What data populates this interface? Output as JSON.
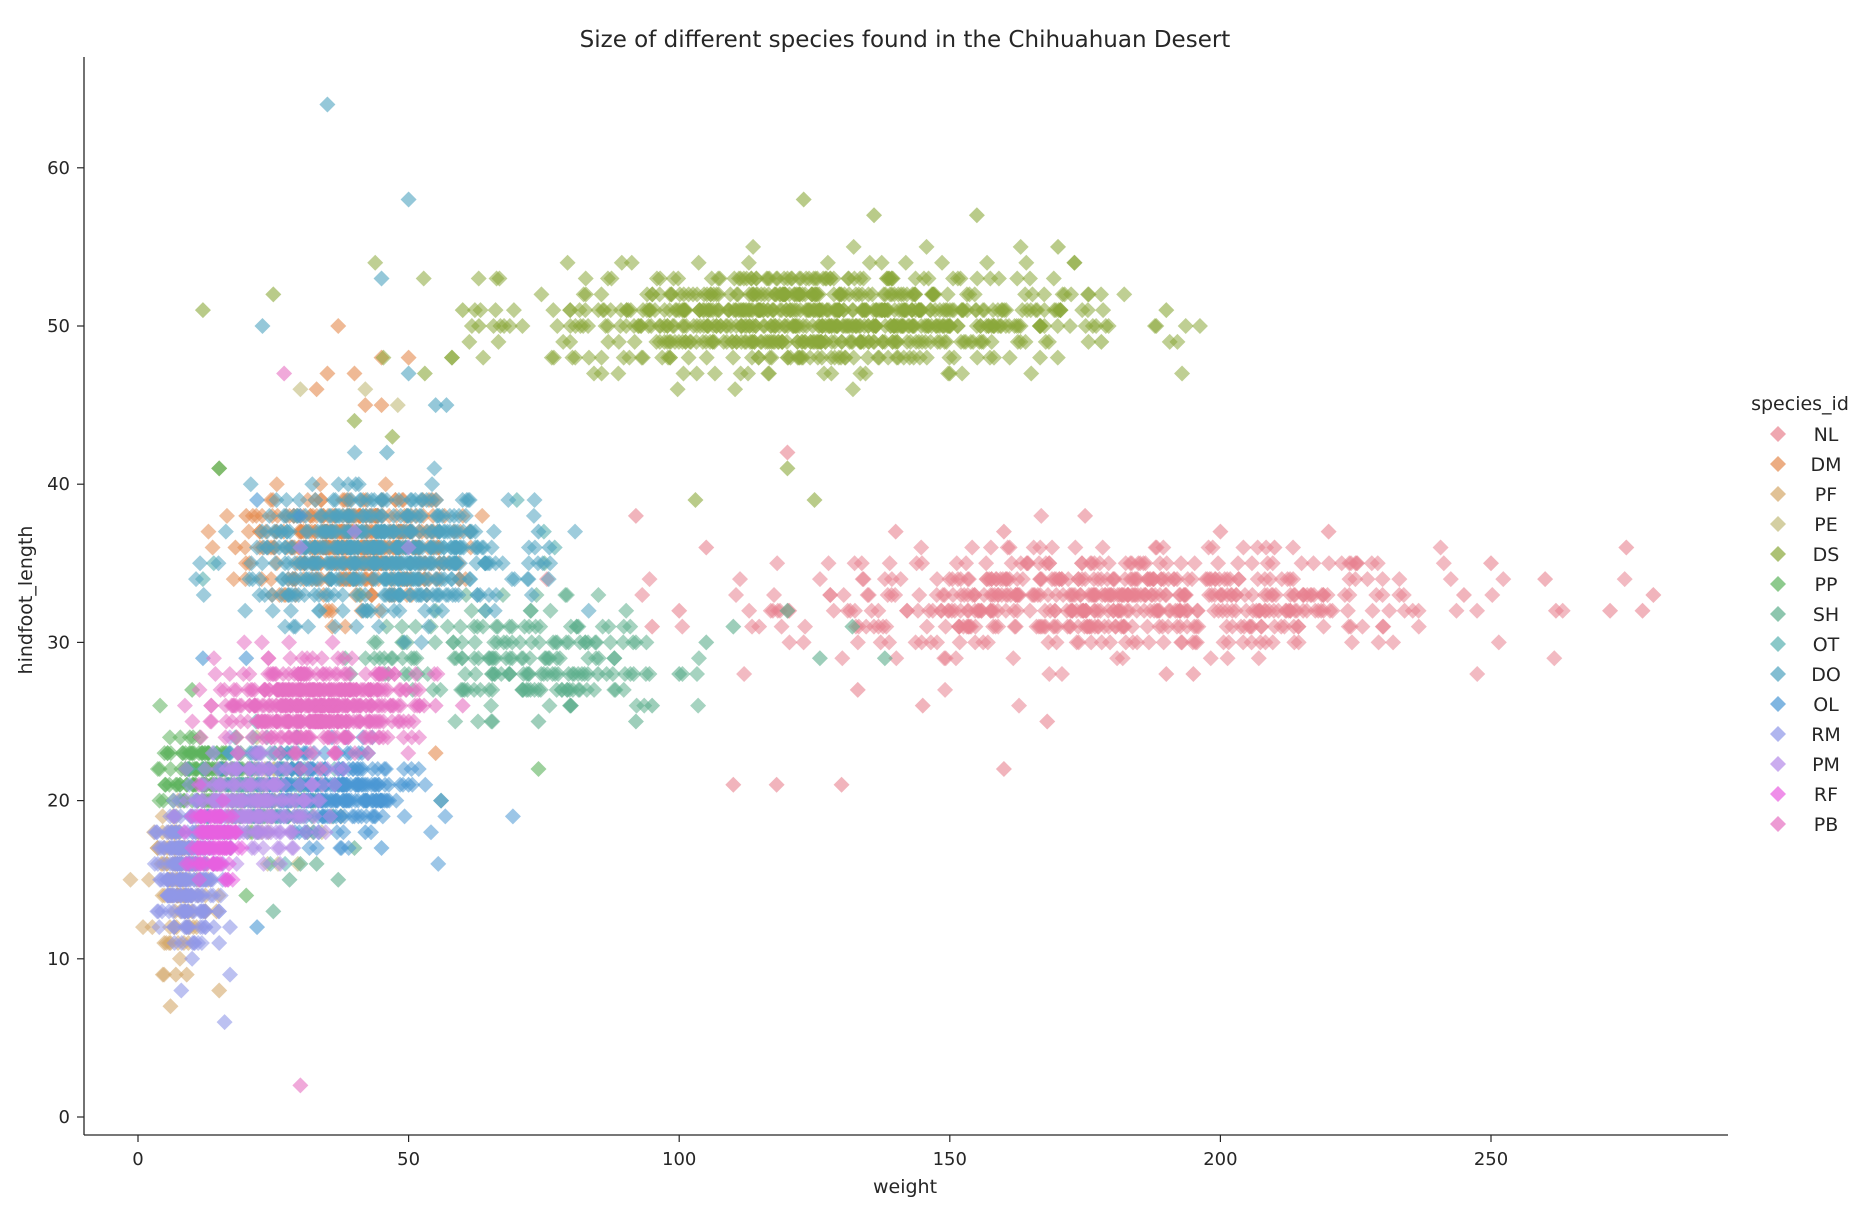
{
  "chart_data": {
    "type": "scatter",
    "title": "Size of different species found in the Chihuahuan Desert",
    "xlabel": "weight",
    "ylabel": "hindfoot_length",
    "xlim": [
      -10,
      293
    ],
    "ylim": [
      -1,
      67
    ],
    "x_ticks": [
      0,
      50,
      100,
      150,
      200,
      250
    ],
    "y_ticks": [
      0,
      10,
      20,
      30,
      40,
      50,
      60
    ],
    "marker": "diamond",
    "grid": false,
    "legend": {
      "title": "species_id",
      "placement": "right"
    },
    "series": [
      {
        "name": "NL",
        "color": "#e8828f",
        "clusters": [
          {
            "cx": 180,
            "cy": 32.5,
            "sx": 30,
            "sy": 1.6,
            "n": 600
          }
        ],
        "points": [
          [
            92,
            38
          ],
          [
            175,
            38
          ],
          [
            200,
            37
          ],
          [
            140,
            37
          ],
          [
            160,
            37
          ],
          [
            110,
            21
          ],
          [
            118,
            21
          ],
          [
            130,
            21
          ],
          [
            160,
            22
          ],
          [
            168,
            25
          ],
          [
            133,
            27
          ],
          [
            145,
            26
          ],
          [
            275,
            36
          ],
          [
            280,
            33
          ],
          [
            272,
            32
          ],
          [
            260,
            34
          ],
          [
            250,
            35
          ],
          [
            105,
            36
          ],
          [
            120,
            42
          ],
          [
            95,
            31
          ],
          [
            100,
            32
          ],
          [
            220,
            37
          ],
          [
            210,
            36
          ],
          [
            190,
            28
          ],
          [
            195,
            28
          ],
          [
            230,
            31
          ],
          [
            245,
            33
          ],
          [
            262,
            32
          ],
          [
            278,
            32
          ]
        ]
      },
      {
        "name": "DM",
        "color": "#e48a4e",
        "clusters": [
          {
            "cx": 40,
            "cy": 36,
            "sx": 9,
            "sy": 1.6,
            "n": 450
          }
        ],
        "points": [
          [
            37,
            50
          ],
          [
            35,
            47
          ],
          [
            40,
            47
          ],
          [
            45,
            48
          ],
          [
            50,
            48
          ],
          [
            33,
            46
          ],
          [
            18,
            36
          ],
          [
            20,
            38
          ],
          [
            25,
            36
          ],
          [
            55,
            23
          ],
          [
            45,
            45
          ],
          [
            42,
            45
          ]
        ]
      },
      {
        "name": "PF",
        "color": "#d4a86a",
        "clusters": [
          {
            "cx": 8,
            "cy": 15,
            "sx": 2.5,
            "sy": 2,
            "n": 120
          }
        ],
        "points": [
          [
            6,
            7
          ],
          [
            7,
            9
          ],
          [
            9,
            9
          ],
          [
            15,
            8
          ],
          [
            6,
            11
          ]
        ]
      },
      {
        "name": "PE",
        "color": "#c2ba7a",
        "clusters": [
          {
            "cx": 24,
            "cy": 20,
            "sx": 5,
            "sy": 1.5,
            "n": 100
          }
        ],
        "points": [
          [
            30,
            46
          ],
          [
            42,
            46
          ],
          [
            48,
            45
          ]
        ]
      },
      {
        "name": "DS",
        "color": "#8aa83a",
        "clusters": [
          {
            "cx": 125,
            "cy": 50.5,
            "sx": 24,
            "sy": 1.6,
            "n": 800
          }
        ],
        "points": [
          [
            12,
            51
          ],
          [
            25,
            52
          ],
          [
            155,
            57
          ],
          [
            123,
            58
          ],
          [
            178,
            49
          ],
          [
            190,
            51
          ],
          [
            103,
            39
          ],
          [
            120,
            41
          ],
          [
            125,
            39
          ],
          [
            15,
            41
          ],
          [
            40,
            44
          ],
          [
            47,
            43
          ],
          [
            58,
            48
          ],
          [
            53,
            47
          ],
          [
            60,
            51
          ],
          [
            63,
            50
          ],
          [
            136,
            57
          ],
          [
            170,
            55
          ],
          [
            173,
            54
          ],
          [
            150,
            47
          ]
        ]
      },
      {
        "name": "PP",
        "color": "#5cb35c",
        "clusters": [
          {
            "cx": 12,
            "cy": 21.5,
            "sx": 4,
            "sy": 1.2,
            "n": 160
          }
        ],
        "points": [
          [
            5,
            21
          ],
          [
            10,
            27
          ],
          [
            15,
            41
          ],
          [
            20,
            14
          ],
          [
            74,
            22
          ]
        ]
      },
      {
        "name": "SH",
        "color": "#5cae8c",
        "clusters": [
          {
            "cx": 70,
            "cy": 29,
            "sx": 14,
            "sy": 1.8,
            "n": 200
          }
        ],
        "points": [
          [
            74,
            25
          ],
          [
            80,
            26
          ],
          [
            92,
            25
          ],
          [
            95,
            26
          ],
          [
            100,
            28
          ],
          [
            105,
            30
          ],
          [
            110,
            31
          ],
          [
            120,
            32
          ],
          [
            126,
            29
          ],
          [
            132,
            31
          ],
          [
            138,
            29
          ],
          [
            25,
            13
          ],
          [
            28,
            15
          ],
          [
            30,
            16
          ],
          [
            33,
            16
          ],
          [
            37,
            15
          ],
          [
            40,
            17
          ],
          [
            56,
            20
          ],
          [
            60,
            27
          ],
          [
            65,
            29
          ],
          [
            85,
            28
          ],
          [
            88,
            29
          ]
        ]
      },
      {
        "name": "OT",
        "color": "#58b0b0",
        "clusters": [
          {
            "cx": 24,
            "cy": 21,
            "sx": 5,
            "sy": 1.5,
            "n": 150
          }
        ],
        "points": [
          [
            70,
            39
          ],
          [
            75,
            37
          ],
          [
            77,
            36
          ],
          [
            12,
            34
          ],
          [
            14,
            35
          ]
        ]
      },
      {
        "name": "DO",
        "color": "#4ea3bf",
        "clusters": [
          {
            "cx": 45,
            "cy": 35.5,
            "sx": 12,
            "sy": 1.9,
            "n": 550
          }
        ],
        "points": [
          [
            35,
            64
          ],
          [
            50,
            58
          ],
          [
            45,
            53
          ],
          [
            23,
            50
          ],
          [
            50,
            47
          ],
          [
            46,
            42
          ],
          [
            55,
            45
          ],
          [
            57,
            45
          ],
          [
            76,
            36
          ],
          [
            74,
            37
          ]
        ]
      },
      {
        "name": "OL",
        "color": "#4a97d4",
        "clusters": [
          {
            "cx": 35,
            "cy": 20.5,
            "sx": 8,
            "sy": 1.4,
            "n": 280
          }
        ],
        "points": [
          [
            22,
            39
          ],
          [
            30,
            38
          ],
          [
            22,
            12
          ],
          [
            12,
            29
          ],
          [
            20,
            29
          ],
          [
            56,
            20
          ],
          [
            50,
            21
          ],
          [
            45,
            17
          ],
          [
            42,
            18
          ]
        ]
      },
      {
        "name": "RM",
        "color": "#8f97e8",
        "clusters": [
          {
            "cx": 9,
            "cy": 15.5,
            "sx": 2.6,
            "sy": 2,
            "n": 260
          }
        ],
        "points": [
          [
            16,
            6
          ],
          [
            8,
            8
          ],
          [
            10,
            10
          ],
          [
            17,
            9
          ],
          [
            15,
            11
          ],
          [
            14,
            12
          ],
          [
            17,
            12
          ]
        ]
      },
      {
        "name": "PM",
        "color": "#b58ae8",
        "clusters": [
          {
            "cx": 22,
            "cy": 20,
            "sx": 6,
            "sy": 1.5,
            "n": 230
          }
        ],
        "points": [
          [
            30,
            36
          ],
          [
            50,
            36
          ],
          [
            40,
            37
          ],
          [
            35,
            22
          ],
          [
            38,
            22
          ]
        ]
      },
      {
        "name": "RF",
        "color": "#e860e0",
        "clusters": [
          {
            "cx": 14,
            "cy": 17.5,
            "sx": 2.2,
            "sy": 1.2,
            "n": 120
          }
        ],
        "points": []
      },
      {
        "name": "PB",
        "color": "#e670c2",
        "clusters": [
          {
            "cx": 33,
            "cy": 26,
            "sx": 9,
            "sy": 1.3,
            "n": 500
          }
        ],
        "points": [
          [
            27,
            47
          ],
          [
            30,
            2
          ],
          [
            55,
            26
          ],
          [
            50,
            25
          ],
          [
            60,
            26
          ]
        ]
      }
    ]
  }
}
